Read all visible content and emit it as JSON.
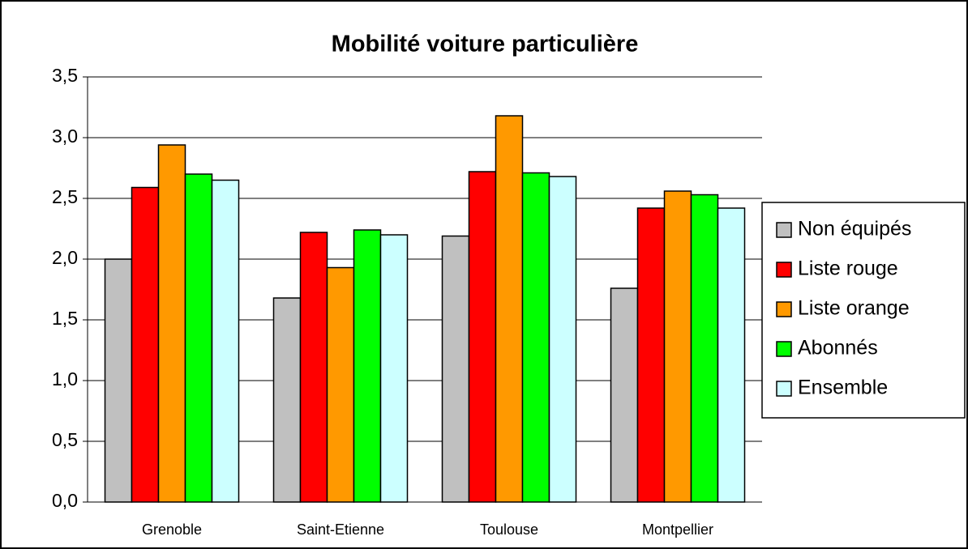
{
  "chart_data": {
    "type": "bar",
    "title": "Mobilité voiture particulière",
    "categories": [
      "Grenoble",
      "Saint-Etienne",
      "Toulouse",
      "Montpellier"
    ],
    "series": [
      {
        "name": "Non équipés",
        "color": "#c0c0c0",
        "values": [
          2.0,
          1.68,
          2.19,
          1.76
        ]
      },
      {
        "name": "Liste rouge",
        "color": "#ff0000",
        "values": [
          2.59,
          2.22,
          2.72,
          2.42
        ]
      },
      {
        "name": "Liste orange",
        "color": "#ff9900",
        "values": [
          2.94,
          1.93,
          3.18,
          2.56
        ]
      },
      {
        "name": "Abonnés",
        "color": "#00ff00",
        "values": [
          2.7,
          2.24,
          2.71,
          2.53
        ]
      },
      {
        "name": "Ensemble",
        "color": "#ccffff",
        "values": [
          2.65,
          2.2,
          2.68,
          2.42
        ]
      }
    ],
    "ylim": [
      0,
      3.5
    ],
    "yticks": [
      {
        "value": 0,
        "label": "0,0"
      },
      {
        "value": 0.5,
        "label": "0,5"
      },
      {
        "value": 1,
        "label": "1,0"
      },
      {
        "value": 1.5,
        "label": "1,5"
      },
      {
        "value": 2,
        "label": "2,0"
      },
      {
        "value": 2.5,
        "label": "2,5"
      },
      {
        "value": 3,
        "label": "3,0"
      },
      {
        "value": 3.5,
        "label": "3,5"
      }
    ],
    "grid": true,
    "legend": "right"
  }
}
